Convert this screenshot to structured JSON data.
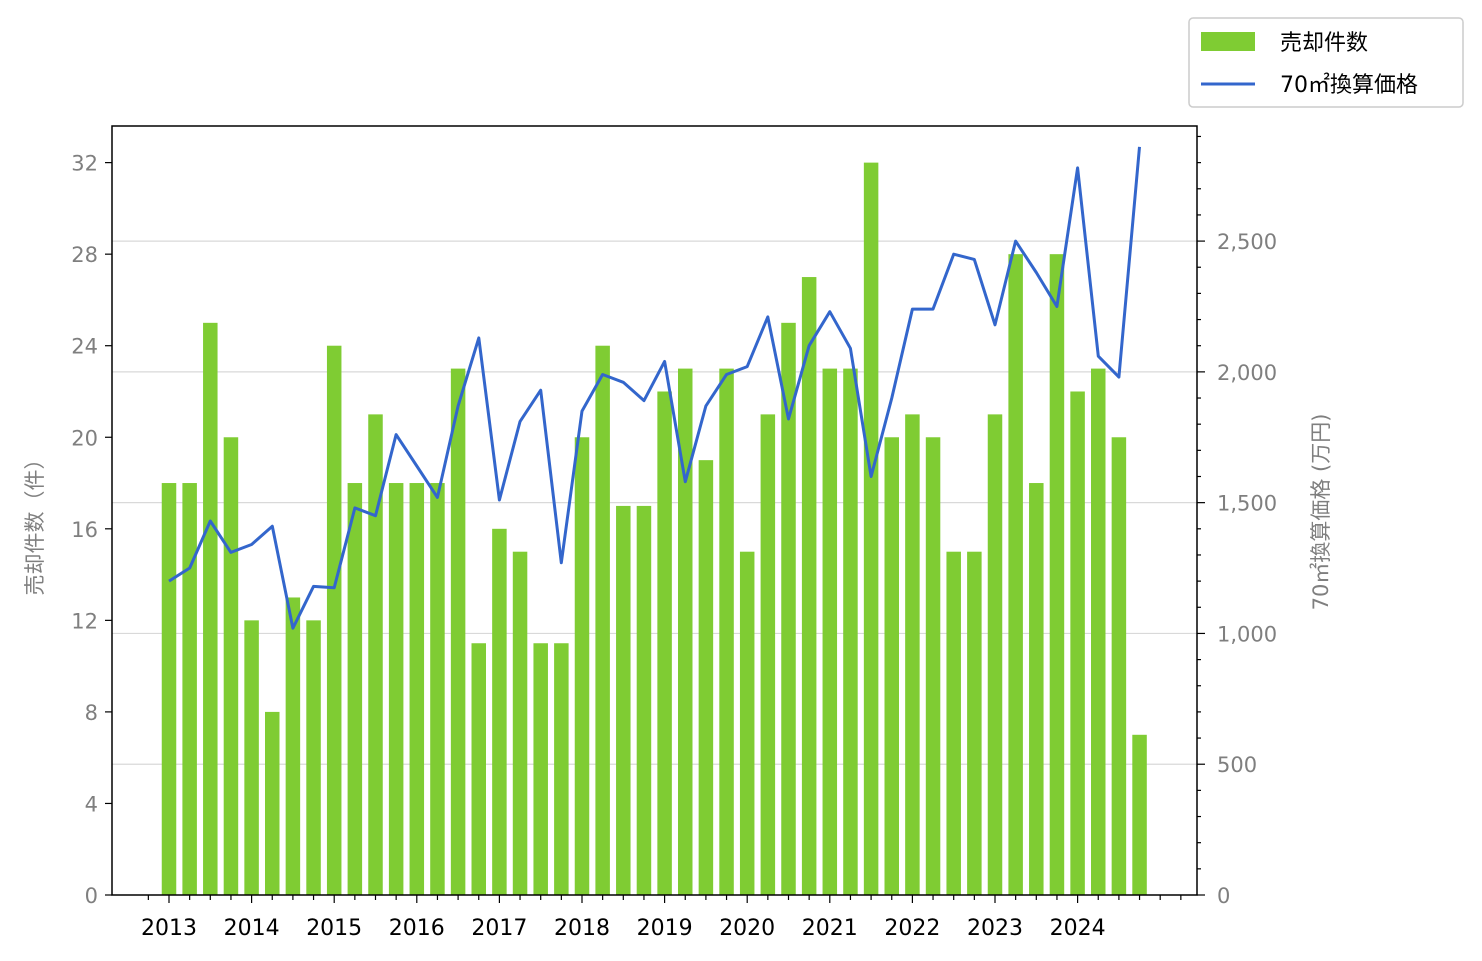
{
  "chart_data": {
    "type": "bar+line",
    "x_tick_labels": [
      "2013",
      "2014",
      "2015",
      "2016",
      "2017",
      "2018",
      "2019",
      "2020",
      "2021",
      "2022",
      "2023",
      "2024"
    ],
    "x": [
      "2013Q1",
      "2013Q2",
      "2013Q3",
      "2013Q4",
      "2014Q1",
      "2014Q2",
      "2014Q3",
      "2014Q4",
      "2015Q1",
      "2015Q2",
      "2015Q3",
      "2015Q4",
      "2016Q1",
      "2016Q2",
      "2016Q3",
      "2016Q4",
      "2017Q1",
      "2017Q2",
      "2017Q3",
      "2017Q4",
      "2018Q1",
      "2018Q2",
      "2018Q3",
      "2018Q4",
      "2019Q1",
      "2019Q2",
      "2019Q3",
      "2019Q4",
      "2020Q1",
      "2020Q2",
      "2020Q3",
      "2020Q4",
      "2021Q1",
      "2021Q2",
      "2021Q3",
      "2021Q4",
      "2022Q1",
      "2022Q2",
      "2022Q3",
      "2022Q4",
      "2023Q1",
      "2023Q2",
      "2023Q3",
      "2023Q4",
      "2024Q1",
      "2024Q2",
      "2024Q3",
      "2024Q4"
    ],
    "series": [
      {
        "name": "売却件数",
        "type": "bar",
        "axis": "left",
        "color": "#7fcc33",
        "values": [
          18,
          18,
          25,
          20,
          12,
          8,
          13,
          12,
          24,
          18,
          21,
          18,
          18,
          18,
          23,
          11,
          16,
          15,
          11,
          11,
          20,
          24,
          17,
          17,
          22,
          23,
          19,
          23,
          15,
          21,
          25,
          27,
          23,
          23,
          32,
          20,
          21,
          20,
          15,
          15,
          21,
          28,
          18,
          28,
          22,
          23,
          20,
          7
        ]
      },
      {
        "name": "70㎡換算価格",
        "type": "line",
        "axis": "right",
        "color": "#3366cc",
        "values": [
          1200,
          1250,
          1430,
          1310,
          1340,
          1410,
          1020,
          1180,
          1175,
          1480,
          1450,
          1760,
          1640,
          1520,
          1870,
          2130,
          1510,
          1810,
          1930,
          1270,
          1850,
          1990,
          1960,
          1890,
          2040,
          1580,
          1870,
          1990,
          2020,
          2210,
          1820,
          2100,
          2230,
          2090,
          1600,
          1900,
          2240,
          2240,
          2450,
          2430,
          2180,
          2500,
          2380,
          2250,
          2780,
          2060,
          1980,
          2860
        ]
      }
    ],
    "ylabel_left": "売却件数（件）",
    "ylabel_right": "70㎡換算価格 (万円)",
    "ylim_left": [
      0,
      33.6
    ],
    "ylim_right": [
      0,
      2940
    ],
    "yticks_left": [
      "0",
      "4",
      "8",
      "12",
      "16",
      "20",
      "24",
      "28",
      "32"
    ],
    "yticks_right": [
      "0",
      "500",
      "1,000",
      "1,500",
      "2,000",
      "2,500"
    ],
    "grid": "horizontal at right-axis major ticks",
    "legend_position": "top-right, outside plot"
  }
}
